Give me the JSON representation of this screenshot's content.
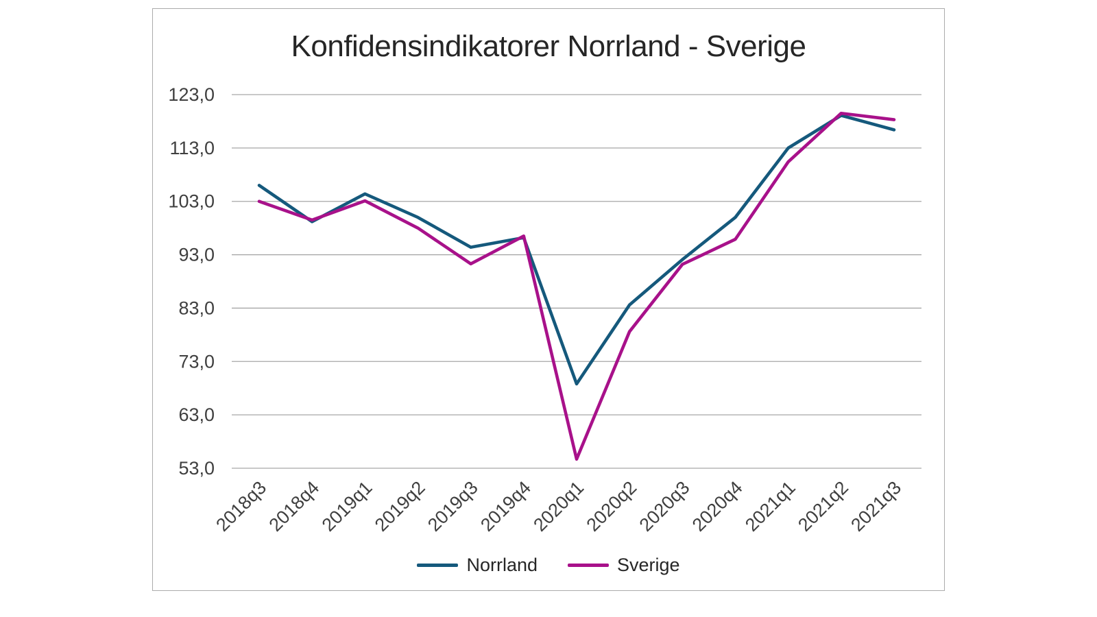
{
  "colors": {
    "background": "#ffffff",
    "frame_border": "#ababab",
    "gridline": "#a6a6a6",
    "title_text": "#262626",
    "tick_text": "#3f3f3f",
    "norrland_line": "#15597C",
    "sverige_line": "#A8118A"
  },
  "chart_data": {
    "type": "line",
    "title": "Konfidensindikatorer Norrland - Sverige",
    "xlabel": "",
    "ylabel": "",
    "grid": true,
    "legend_position": "bottom",
    "ylim": [
      53,
      123
    ],
    "categories": [
      "2018q3",
      "2018q4",
      "2019q1",
      "2019q2",
      "2019q3",
      "2019q4",
      "2020q1",
      "2020q2",
      "2020q3",
      "2020q4",
      "2021q1",
      "2021q2",
      "2021q3"
    ],
    "series": [
      {
        "name": "Norrland",
        "color": "#15597C",
        "values": [
          106.0,
          99.2,
          104.4,
          100.0,
          94.4,
          96.2,
          68.8,
          83.6,
          92.1,
          100.0,
          113.0,
          119.1,
          116.4
        ]
      },
      {
        "name": "Sverige",
        "color": "#A8118A",
        "values": [
          103.0,
          99.5,
          103.1,
          98.0,
          91.3,
          96.5,
          54.7,
          78.6,
          91.2,
          95.9,
          110.4,
          119.5,
          118.3
        ]
      }
    ],
    "yticks": [
      {
        "v": 123,
        "label": "123,0"
      },
      {
        "v": 113,
        "label": "113,0"
      },
      {
        "v": 103,
        "label": "103,0"
      },
      {
        "v": 93,
        "label": "93,0"
      },
      {
        "v": 83,
        "label": "83,0"
      },
      {
        "v": 73,
        "label": "73,0"
      },
      {
        "v": 63,
        "label": "63,0"
      },
      {
        "v": 53,
        "label": "53,0"
      }
    ]
  }
}
